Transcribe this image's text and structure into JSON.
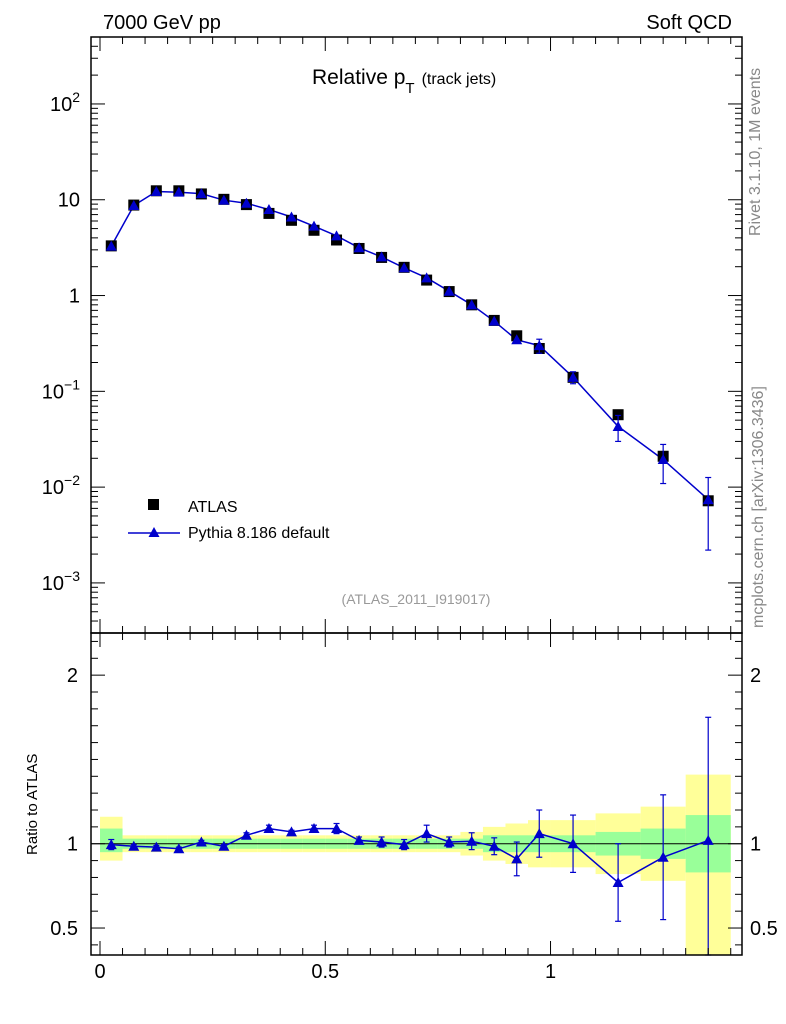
{
  "header": {
    "left": "7000 GeV pp",
    "right": "Soft QCD",
    "side_top": "Rivet 3.1.10,  1M events",
    "side_bottom": "mcplots.cern.ch [arXiv:1306.3436]"
  },
  "chart_data": [
    {
      "type": "scatter",
      "title_main": "Relative p",
      "title_sub": "T",
      "title_extra": "(track jets)",
      "analysis_tag": "(ATLAS_2011_I919017)",
      "xlim": [
        -0.02,
        1.425
      ],
      "ylim": [
        0.0003,
        500
      ],
      "yscale": "log",
      "yticks": [
        {
          "value": 0.001,
          "base": "10",
          "exp": "−3"
        },
        {
          "value": 0.01,
          "base": "10",
          "exp": "−2"
        },
        {
          "value": 0.1,
          "base": "10",
          "exp": "−1"
        },
        {
          "value": 1,
          "base": "1",
          "exp": ""
        },
        {
          "value": 10,
          "base": "10",
          "exp": ""
        },
        {
          "value": 100,
          "base": "10",
          "exp": "2"
        }
      ],
      "legend": {
        "position": "lower-left",
        "entries": [
          "ATLAS",
          "Pythia 8.186 default"
        ]
      },
      "series": [
        {
          "name": "ATLAS",
          "color": "#000000",
          "marker": "square",
          "x": [
            0.025,
            0.075,
            0.125,
            0.175,
            0.225,
            0.275,
            0.325,
            0.375,
            0.425,
            0.475,
            0.525,
            0.575,
            0.625,
            0.675,
            0.725,
            0.775,
            0.825,
            0.875,
            0.925,
            0.975,
            1.05,
            1.15,
            1.25,
            1.35
          ],
          "y": [
            3.3,
            8.8,
            12.4,
            12.4,
            11.5,
            10.1,
            8.9,
            7.2,
            6.1,
            4.8,
            3.8,
            3.1,
            2.5,
            1.97,
            1.45,
            1.1,
            0.8,
            0.55,
            0.38,
            0.28,
            0.14,
            0.057,
            0.021,
            0.0072
          ]
        },
        {
          "name": "Pythia 8.186 default",
          "color": "#0000cc",
          "marker": "triangle",
          "x": [
            0.025,
            0.075,
            0.125,
            0.175,
            0.225,
            0.275,
            0.325,
            0.375,
            0.425,
            0.475,
            0.525,
            0.575,
            0.625,
            0.675,
            0.725,
            0.775,
            0.825,
            0.875,
            0.925,
            0.975,
            1.05,
            1.15,
            1.25,
            1.35
          ],
          "y": [
            3.28,
            8.7,
            12.2,
            12.0,
            11.6,
            9.9,
            9.2,
            7.9,
            6.6,
            5.3,
            4.2,
            3.15,
            2.53,
            1.95,
            1.53,
            1.11,
            0.8,
            0.54,
            0.345,
            0.3,
            0.14,
            0.043,
            0.0194,
            0.0074
          ],
          "yerr": [
            0.05,
            0.1,
            0.15,
            0.15,
            0.15,
            0.12,
            0.12,
            0.1,
            0.09,
            0.07,
            0.06,
            0.05,
            0.04,
            0.04,
            0.03,
            0.03,
            0.02,
            0.02,
            0.03,
            0.05,
            0.02,
            0.013,
            0.0085,
            0.0052
          ]
        }
      ]
    },
    {
      "type": "scatter",
      "ylabel": "Ratio to ATLAS",
      "xlim": [
        -0.02,
        1.425
      ],
      "ylim": [
        0.34,
        2.25
      ],
      "xticks": [
        0,
        0.5,
        1
      ],
      "xtick_labels": [
        "0",
        "0.5",
        "1"
      ],
      "yticks": [
        0.5,
        1,
        2
      ],
      "ytick_labels": [
        "0.5",
        "1",
        "2"
      ],
      "reference_line": 1,
      "bands": {
        "edges": [
          0,
          0.05,
          0.1,
          0.15,
          0.2,
          0.25,
          0.3,
          0.35,
          0.4,
          0.45,
          0.5,
          0.55,
          0.6,
          0.65,
          0.7,
          0.75,
          0.8,
          0.85,
          0.9,
          0.95,
          1.0,
          1.1,
          1.2,
          1.3,
          1.4
        ],
        "green_lo": [
          0.95,
          0.97,
          0.97,
          0.97,
          0.97,
          0.97,
          0.97,
          0.97,
          0.97,
          0.97,
          0.97,
          0.97,
          0.97,
          0.97,
          0.97,
          0.97,
          0.97,
          0.95,
          0.95,
          0.95,
          0.95,
          0.93,
          0.91,
          0.83,
          0.34
        ],
        "green_hi": [
          1.09,
          1.03,
          1.03,
          1.03,
          1.03,
          1.03,
          1.03,
          1.03,
          1.03,
          1.03,
          1.03,
          1.03,
          1.03,
          1.03,
          1.03,
          1.03,
          1.03,
          1.05,
          1.05,
          1.05,
          1.05,
          1.07,
          1.09,
          1.17,
          1.66
        ],
        "yellow_lo": [
          0.9,
          0.95,
          0.95,
          0.95,
          0.95,
          0.95,
          0.95,
          0.95,
          0.95,
          0.95,
          0.95,
          0.95,
          0.95,
          0.95,
          0.95,
          0.95,
          0.93,
          0.9,
          0.88,
          0.86,
          0.86,
          0.82,
          0.78,
          0.34,
          0.34
        ],
        "yellow_hi": [
          1.16,
          1.05,
          1.05,
          1.05,
          1.05,
          1.05,
          1.05,
          1.05,
          1.05,
          1.05,
          1.05,
          1.05,
          1.05,
          1.05,
          1.05,
          1.05,
          1.07,
          1.1,
          1.12,
          1.14,
          1.14,
          1.18,
          1.22,
          1.41,
          2.2
        ]
      },
      "series": [
        {
          "name": "Pythia 8.186 default",
          "color": "#0000cc",
          "x": [
            0.025,
            0.075,
            0.125,
            0.175,
            0.225,
            0.275,
            0.325,
            0.375,
            0.425,
            0.475,
            0.525,
            0.575,
            0.625,
            0.675,
            0.725,
            0.775,
            0.825,
            0.875,
            0.925,
            0.975,
            1.05,
            1.15,
            1.25,
            1.35
          ],
          "y": [
            0.995,
            0.985,
            0.98,
            0.97,
            1.01,
            0.985,
            1.05,
            1.09,
            1.07,
            1.09,
            1.09,
            1.02,
            1.01,
            0.995,
            1.06,
            1.01,
            1.015,
            0.985,
            0.91,
            1.06,
            1.0,
            0.77,
            0.92,
            1.02
          ],
          "yerr": [
            0.03,
            0.01,
            0.01,
            0.01,
            0.01,
            0.01,
            0.015,
            0.02,
            0.01,
            0.02,
            0.03,
            0.02,
            0.03,
            0.03,
            0.05,
            0.03,
            0.05,
            0.05,
            0.1,
            0.14,
            0.17,
            0.23,
            0.37,
            0.73
          ]
        }
      ]
    }
  ]
}
